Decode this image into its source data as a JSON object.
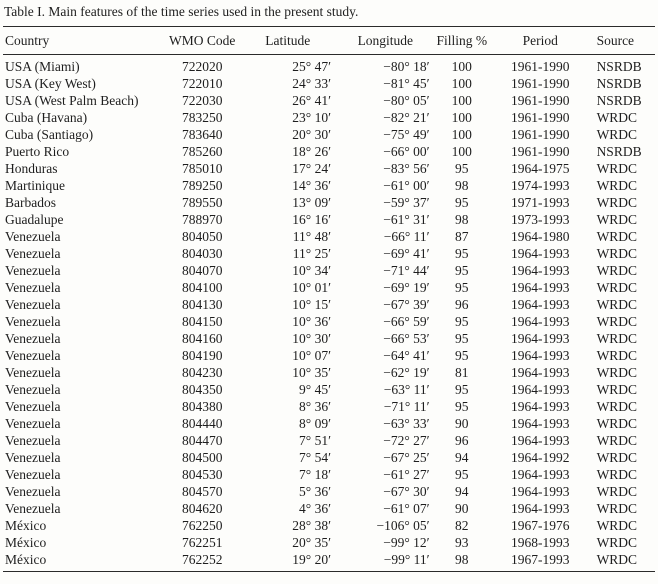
{
  "colors": {
    "background": "#fdfdfb",
    "text": "#1e1e1e",
    "rule": "#2b2b2b"
  },
  "table": {
    "caption": "Table I. Main features of the time series used in the present study.",
    "columns": [
      {
        "key": "country",
        "label": "Country"
      },
      {
        "key": "wmo",
        "label": "WMO Code"
      },
      {
        "key": "lat",
        "label": "Latitude"
      },
      {
        "key": "lon",
        "label": "Longitude"
      },
      {
        "key": "fill",
        "label": "Filling %"
      },
      {
        "key": "period",
        "label": "Period"
      },
      {
        "key": "source",
        "label": "Source"
      }
    ],
    "rows": [
      [
        "USA (Miami)",
        "722020",
        "25° 47′",
        "−80° 18′",
        "100",
        "1961-1990",
        "NSRDB"
      ],
      [
        "USA (Key West)",
        "722010",
        "24° 33′",
        "−81° 45′",
        "100",
        "1961-1990",
        "NSRDB"
      ],
      [
        "USA (West Palm Beach)",
        "722030",
        "26° 41′",
        "−80° 05′",
        "100",
        "1961-1990",
        "NSRDB"
      ],
      [
        "Cuba (Havana)",
        "783250",
        "23° 10′",
        "−82° 21′",
        "100",
        "1961-1990",
        "WRDC"
      ],
      [
        "Cuba (Santiago)",
        "783640",
        "20° 30′",
        "−75° 49′",
        "100",
        "1961-1990",
        "WRDC"
      ],
      [
        "Puerto Rico",
        "785260",
        "18° 26′",
        "−66° 00′",
        "100",
        "1961-1990",
        "NSRDB"
      ],
      [
        "Honduras",
        "785010",
        "17° 24′",
        "−83° 56′",
        "95",
        "1964-1975",
        "WRDC"
      ],
      [
        "Martinique",
        "789250",
        "14° 36′",
        "−61° 00′",
        "98",
        "1974-1993",
        "WRDC"
      ],
      [
        "Barbados",
        "789550",
        "13° 09′",
        "−59° 37′",
        "95",
        "1971-1993",
        "WRDC"
      ],
      [
        "Guadalupe",
        "788970",
        "16° 16′",
        "−61° 31′",
        "98",
        "1973-1993",
        "WRDC"
      ],
      [
        "Venezuela",
        "804050",
        "11° 48′",
        "−66° 11′",
        "87",
        "1964-1980",
        "WRDC"
      ],
      [
        "Venezuela",
        "804030",
        "11° 25′",
        "−69° 41′",
        "95",
        "1964-1993",
        "WRDC"
      ],
      [
        "Venezuela",
        "804070",
        "10° 34′",
        "−71° 44′",
        "95",
        "1964-1993",
        "WRDC"
      ],
      [
        "Venezuela",
        "804100",
        "10° 01′",
        "−69° 19′",
        "95",
        "1964-1993",
        "WRDC"
      ],
      [
        "Venezuela",
        "804130",
        "10° 15′",
        "−67° 39′",
        "96",
        "1964-1993",
        "WRDC"
      ],
      [
        "Venezuela",
        "804150",
        "10° 36′",
        "−66° 59′",
        "95",
        "1964-1993",
        "WRDC"
      ],
      [
        "Venezuela",
        "804160",
        "10° 30′",
        "−66° 53′",
        "95",
        "1964-1993",
        "WRDC"
      ],
      [
        "Venezuela",
        "804190",
        "10° 07′",
        "−64° 41′",
        "95",
        "1964-1993",
        "WRDC"
      ],
      [
        "Venezuela",
        "804230",
        "10° 35′",
        "−62° 19′",
        "81",
        "1964-1993",
        "WRDC"
      ],
      [
        "Venezuela",
        "804350",
        "9° 45′",
        "−63° 11′",
        "95",
        "1964-1993",
        "WRDC"
      ],
      [
        "Venezuela",
        "804380",
        "8° 36′",
        "−71° 11′",
        "95",
        "1964-1993",
        "WRDC"
      ],
      [
        "Venezuela",
        "804440",
        "8° 09′",
        "−63° 33′",
        "90",
        "1964-1993",
        "WRDC"
      ],
      [
        "Venezuela",
        "804470",
        "7° 51′",
        "−72° 27′",
        "96",
        "1964-1993",
        "WRDC"
      ],
      [
        "Venezuela",
        "804500",
        "7° 54′",
        "−67° 25′",
        "94",
        "1964-1992",
        "WRDC"
      ],
      [
        "Venezuela",
        "804530",
        "7° 18′",
        "−61° 27′",
        "95",
        "1964-1993",
        "WRDC"
      ],
      [
        "Venezuela",
        "804570",
        "5° 36′",
        "−67° 30′",
        "94",
        "1964-1993",
        "WRDC"
      ],
      [
        "Venezuela",
        "804620",
        "4° 36′",
        "−61° 07′",
        "90",
        "1964-1993",
        "WRDC"
      ],
      [
        "México",
        "762250",
        "28° 38′",
        "−106° 05′",
        "82",
        "1967-1976",
        "WRDC"
      ],
      [
        "México",
        "762251",
        "20° 35′",
        "−99° 12′",
        "93",
        "1968-1993",
        "WRDC"
      ],
      [
        "México",
        "762252",
        "19° 20′",
        "−99° 11′",
        "98",
        "1967-1993",
        "WRDC"
      ]
    ]
  }
}
